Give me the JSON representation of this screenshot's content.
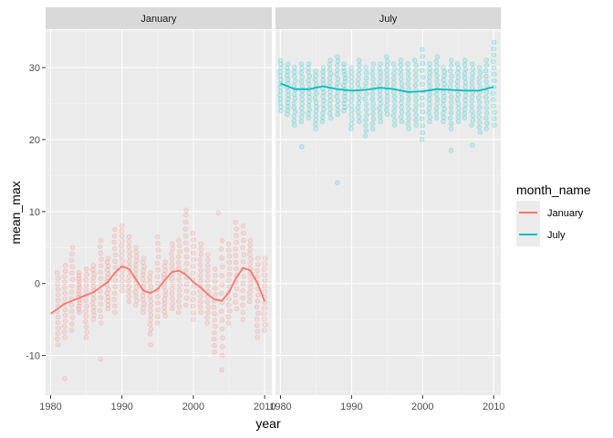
{
  "chart_data": {
    "type": "scatter",
    "xlabel": "year",
    "ylabel": "mean_max",
    "xlim": [
      1979.3,
      2011.0
    ],
    "ylim": [
      -15.5,
      35.2
    ],
    "x_ticks": [
      1980,
      1990,
      2000,
      2010
    ],
    "y_ticks": [
      -10,
      0,
      10,
      20,
      30
    ],
    "x_tick_labels": [
      "1980",
      "1990",
      "2000",
      "2010"
    ],
    "y_tick_labels": [
      "-10",
      "0",
      "10",
      "20",
      "30"
    ],
    "grid": true,
    "legend": {
      "title": "month_name",
      "position": "right",
      "entries": [
        "January",
        "July"
      ]
    },
    "facets": [
      {
        "label": "January",
        "color": "#F8766D",
        "points_per_year": 14,
        "scatter_ranges": [
          {
            "year": 1981,
            "min": -8.5,
            "max": 1.5
          },
          {
            "year": 1982,
            "min": -7.5,
            "max": 2.5
          },
          {
            "year": 1983,
            "min": -6.5,
            "max": 5.0
          },
          {
            "year": 1984,
            "min": -4.0,
            "max": 1.5
          },
          {
            "year": 1985,
            "min": -7.5,
            "max": 2.0
          },
          {
            "year": 1986,
            "min": -5.0,
            "max": 2.5
          },
          {
            "year": 1987,
            "min": -5.5,
            "max": 6.0
          },
          {
            "year": 1988,
            "min": -3.5,
            "max": 3.5
          },
          {
            "year": 1989,
            "min": -4.0,
            "max": 7.5
          },
          {
            "year": 1990,
            "min": -1.0,
            "max": 8.0
          },
          {
            "year": 1991,
            "min": -2.5,
            "max": 6.5
          },
          {
            "year": 1992,
            "min": -3.0,
            "max": 5.0
          },
          {
            "year": 1993,
            "min": -4.0,
            "max": 3.5
          },
          {
            "year": 1994,
            "min": -7.0,
            "max": 1.5
          },
          {
            "year": 1995,
            "min": -5.5,
            "max": 6.5
          },
          {
            "year": 1996,
            "min": -4.5,
            "max": 3.0
          },
          {
            "year": 1997,
            "min": -3.5,
            "max": 5.5
          },
          {
            "year": 1998,
            "min": -4.0,
            "max": 6.0
          },
          {
            "year": 1999,
            "min": -3.0,
            "max": 9.5
          },
          {
            "year": 2000,
            "min": -5.0,
            "max": 7.0
          },
          {
            "year": 2001,
            "min": -4.0,
            "max": 5.5
          },
          {
            "year": 2002,
            "min": -5.5,
            "max": 4.0
          },
          {
            "year": 2003,
            "min": -9.5,
            "max": 2.0
          },
          {
            "year": 2004,
            "min": -10.0,
            "max": 6.0
          },
          {
            "year": 2005,
            "min": -5.5,
            "max": 5.5
          },
          {
            "year": 2006,
            "min": -3.5,
            "max": 8.5
          },
          {
            "year": 2007,
            "min": -5.0,
            "max": 8.0
          },
          {
            "year": 2008,
            "min": -2.5,
            "max": 6.0
          },
          {
            "year": 2009,
            "min": -7.5,
            "max": 3.5
          },
          {
            "year": 2010,
            "min": -6.5,
            "max": 3.5
          }
        ],
        "outliers": [
          {
            "x": 1982.0,
            "y": -13.2
          },
          {
            "x": 1987.0,
            "y": -10.5
          },
          {
            "x": 1994.0,
            "y": -8.5
          },
          {
            "x": 2004.0,
            "y": -12.0
          },
          {
            "x": 1999.0,
            "y": 10.2
          },
          {
            "x": 2003.5,
            "y": 9.8
          }
        ],
        "smooth": {
          "x": [
            1980,
            1982,
            1984,
            1986,
            1988,
            1989,
            1990,
            1991,
            1992,
            1993,
            1994,
            1995,
            1996,
            1997,
            1998,
            1999,
            2000,
            2001,
            2002,
            2003,
            2004,
            2005,
            2006,
            2007,
            2008,
            2009,
            2010
          ],
          "y": [
            -4.2,
            -2.8,
            -2.0,
            -1.2,
            0.2,
            1.5,
            2.4,
            2.0,
            0.5,
            -1.0,
            -1.3,
            -0.8,
            0.5,
            1.6,
            1.8,
            1.2,
            0.2,
            -0.5,
            -1.5,
            -2.2,
            -2.4,
            -1.2,
            0.8,
            2.2,
            1.8,
            0.0,
            -2.5
          ]
        }
      },
      {
        "label": "July",
        "color": "#00BFC4",
        "points_per_year": 14,
        "scatter_ranges": [
          {
            "year": 1980,
            "min": 24.0,
            "max": 31.0
          },
          {
            "year": 1981,
            "min": 23.5,
            "max": 30.5
          },
          {
            "year": 1982,
            "min": 22.0,
            "max": 30.0
          },
          {
            "year": 1983,
            "min": 22.5,
            "max": 30.5
          },
          {
            "year": 1984,
            "min": 23.0,
            "max": 30.5
          },
          {
            "year": 1985,
            "min": 21.5,
            "max": 29.5
          },
          {
            "year": 1986,
            "min": 22.5,
            "max": 30.0
          },
          {
            "year": 1987,
            "min": 23.0,
            "max": 31.0
          },
          {
            "year": 1988,
            "min": 23.5,
            "max": 31.5
          },
          {
            "year": 1989,
            "min": 24.0,
            "max": 30.5
          },
          {
            "year": 1990,
            "min": 21.5,
            "max": 30.0
          },
          {
            "year": 1991,
            "min": 22.5,
            "max": 31.0
          },
          {
            "year": 1992,
            "min": 20.5,
            "max": 30.0
          },
          {
            "year": 1993,
            "min": 21.5,
            "max": 30.5
          },
          {
            "year": 1994,
            "min": 22.5,
            "max": 30.5
          },
          {
            "year": 1995,
            "min": 23.5,
            "max": 31.5
          },
          {
            "year": 1996,
            "min": 22.0,
            "max": 30.5
          },
          {
            "year": 1997,
            "min": 22.5,
            "max": 31.0
          },
          {
            "year": 1998,
            "min": 21.5,
            "max": 30.5
          },
          {
            "year": 1999,
            "min": 22.0,
            "max": 31.0
          },
          {
            "year": 2000,
            "min": 20.0,
            "max": 32.5
          },
          {
            "year": 2001,
            "min": 22.5,
            "max": 30.5
          },
          {
            "year": 2002,
            "min": 23.0,
            "max": 31.5
          },
          {
            "year": 2003,
            "min": 22.5,
            "max": 30.0
          },
          {
            "year": 2004,
            "min": 21.5,
            "max": 31.0
          },
          {
            "year": 2005,
            "min": 22.5,
            "max": 30.5
          },
          {
            "year": 2006,
            "min": 23.0,
            "max": 31.0
          },
          {
            "year": 2007,
            "min": 22.0,
            "max": 30.5
          },
          {
            "year": 2008,
            "min": 21.0,
            "max": 30.0
          },
          {
            "year": 2009,
            "min": 21.5,
            "max": 31.0
          },
          {
            "year": 2010,
            "min": 22.0,
            "max": 33.5
          }
        ],
        "outliers": [
          {
            "x": 1983.0,
            "y": 19.0
          },
          {
            "x": 1988.0,
            "y": 14.0
          },
          {
            "x": 2004.0,
            "y": 18.5
          },
          {
            "x": 2007.0,
            "y": 19.2
          }
        ],
        "smooth": {
          "x": [
            1980,
            1982,
            1984,
            1986,
            1988,
            1990,
            1992,
            1994,
            1996,
            1998,
            2000,
            2002,
            2004,
            2006,
            2008,
            2010
          ],
          "y": [
            27.8,
            27.0,
            27.0,
            27.4,
            27.0,
            26.8,
            26.9,
            27.2,
            27.0,
            26.6,
            26.7,
            27.0,
            26.9,
            26.8,
            26.8,
            27.3
          ]
        }
      }
    ]
  }
}
